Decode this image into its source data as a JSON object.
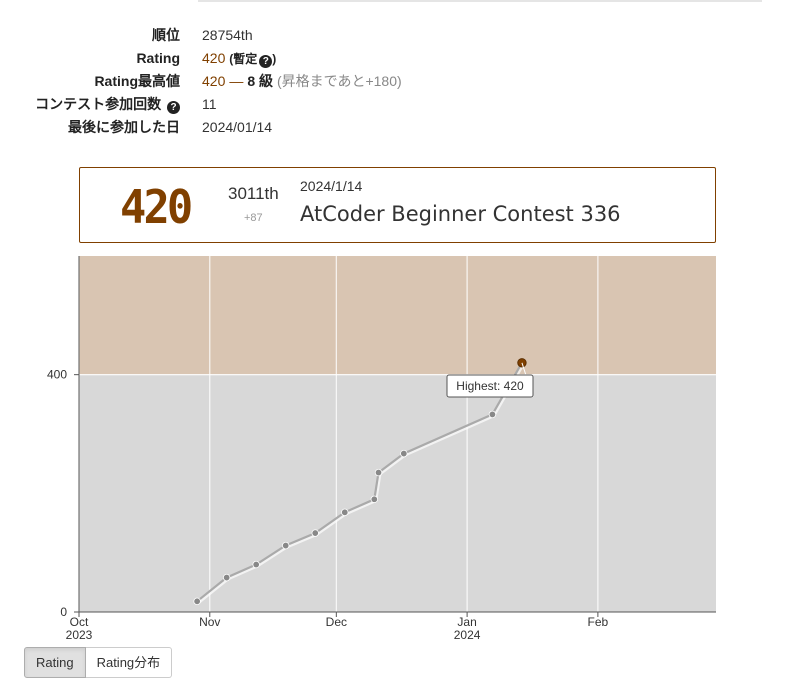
{
  "profile": {
    "rank_label": "順位",
    "rank_value": "28754th",
    "rating_label": "Rating",
    "rating_value": "420",
    "rating_provisional": "(暫定",
    "rating_provisional_end": ")",
    "highest_label": "Rating最高値",
    "highest_value": "420",
    "highest_dash": "—",
    "highest_kyu": "8 級",
    "highest_note": "(昇格まであと+180)",
    "contests_label": "コンテスト参加回数",
    "contests_value": "11",
    "last_label": "最後に参加した日",
    "last_value": "2024/01/14"
  },
  "card": {
    "rating": "420",
    "rank": "3011th",
    "diff": "+87",
    "date": "2024/1/14",
    "contest_name": "AtCoder Beginner Contest 336"
  },
  "chart_data": {
    "type": "line",
    "x_axis": "date",
    "xlim": [
      "2023-10-01",
      "2024-02-29"
    ],
    "ylim": [
      0,
      600
    ],
    "yticks": [
      0,
      400
    ],
    "xticks": [
      {
        "date": "2023-10-01",
        "label": "Oct",
        "sublabel": "2023"
      },
      {
        "date": "2023-11-01",
        "label": "Nov",
        "sublabel": ""
      },
      {
        "date": "2023-12-01",
        "label": "Dec",
        "sublabel": ""
      },
      {
        "date": "2024-01-01",
        "label": "Jan",
        "sublabel": "2024"
      },
      {
        "date": "2024-02-01",
        "label": "Feb",
        "sublabel": ""
      }
    ],
    "bands": [
      {
        "from": 0,
        "to": 400,
        "color": "#d8d8d8"
      },
      {
        "from": 400,
        "to": 600,
        "color": "#d9c5b2"
      }
    ],
    "points": [
      {
        "date": "2023-10-29",
        "rating": 18
      },
      {
        "date": "2023-11-05",
        "rating": 58
      },
      {
        "date": "2023-11-12",
        "rating": 80
      },
      {
        "date": "2023-11-19",
        "rating": 112
      },
      {
        "date": "2023-11-26",
        "rating": 133
      },
      {
        "date": "2023-12-03",
        "rating": 168
      },
      {
        "date": "2023-12-10",
        "rating": 190
      },
      {
        "date": "2023-12-11",
        "rating": 235
      },
      {
        "date": "2023-12-17",
        "rating": 267
      },
      {
        "date": "2024-01-07",
        "rating": 333
      },
      {
        "date": "2024-01-14",
        "rating": 420
      }
    ],
    "highlight_label": "Highest: 420",
    "line_color": "#aaaaaa",
    "point_color": "#888888",
    "latest_point_color": "#804000",
    "grid": true
  },
  "buttons": {
    "rating": "Rating",
    "distribution": "Rating分布"
  }
}
